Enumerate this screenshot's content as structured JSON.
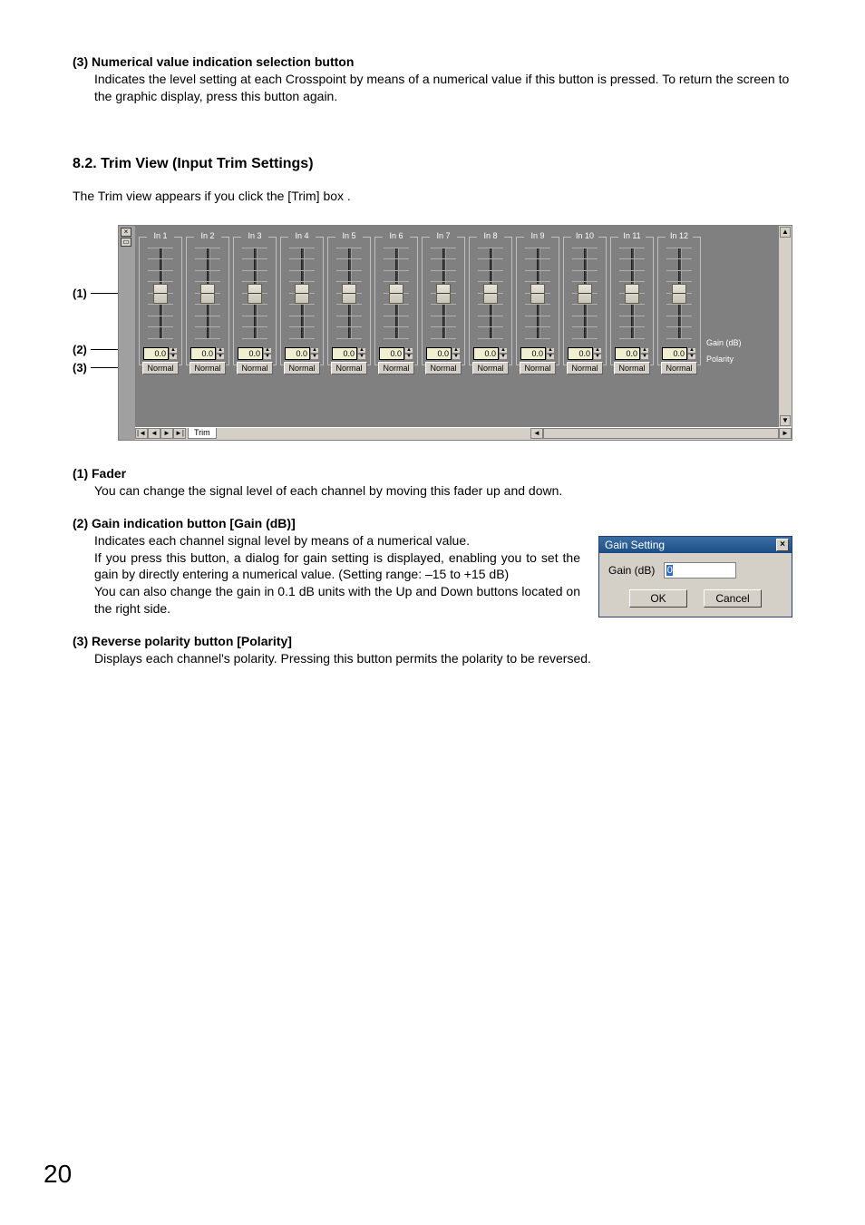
{
  "item3": {
    "heading": "(3)  Numerical value indication selection button",
    "body": "Indicates the level setting at each Crosspoint by means of a numerical value if this button is pressed. To return the screen to the graphic display, press this button again."
  },
  "section": {
    "title": "8.2. Trim View (Input Trim Settings)",
    "intro": "The Trim view appears if you click the [Trim] box ."
  },
  "callouts": [
    "(1)",
    "(2)",
    "(3)"
  ],
  "trim": {
    "channels": [
      {
        "label": "In 1",
        "gain": "0.0",
        "polarity": "Normal"
      },
      {
        "label": "In 2",
        "gain": "0.0",
        "polarity": "Normal"
      },
      {
        "label": "In 3",
        "gain": "0.0",
        "polarity": "Normal"
      },
      {
        "label": "In 4",
        "gain": "0.0",
        "polarity": "Normal"
      },
      {
        "label": "In 5",
        "gain": "0.0",
        "polarity": "Normal"
      },
      {
        "label": "In 6",
        "gain": "0.0",
        "polarity": "Normal"
      },
      {
        "label": "In 7",
        "gain": "0.0",
        "polarity": "Normal"
      },
      {
        "label": "In 8",
        "gain": "0.0",
        "polarity": "Normal"
      },
      {
        "label": "In 9",
        "gain": "0.0",
        "polarity": "Normal"
      },
      {
        "label": "In 10",
        "gain": "0.0",
        "polarity": "Normal"
      },
      {
        "label": "In 11",
        "gain": "0.0",
        "polarity": "Normal"
      },
      {
        "label": "In 12",
        "gain": "0.0",
        "polarity": "Normal"
      }
    ],
    "side_gain_label": "Gain (dB)",
    "side_polarity_label": "Polarity",
    "tab_label": "Trim",
    "nav": {
      "first": "|◄",
      "prev": "◄",
      "next": "►",
      "last": "►|"
    },
    "close_x": "×",
    "dock": "▭",
    "spin_up": "▲",
    "spin_down": "▼",
    "scroll_up": "▲",
    "scroll_down": "▼",
    "scroll_left": "◄",
    "scroll_right": "►",
    "colors": {
      "panel_bg": "#808080",
      "outer_bg": "#a0a0a0",
      "btn_face": "#d4d0c8",
      "gain_bg": "#f0f0d0",
      "text_light": "#ffffff"
    }
  },
  "fader_item": {
    "heading": "(1) Fader",
    "body": "You can change the signal level of each channel by moving this fader up and down."
  },
  "gain_item": {
    "heading": "(2) Gain indication button [Gain (dB)]",
    "body1": "Indicates each channel signal level by means of a numerical value.",
    "body2": "If you press this button, a dialog for gain setting is displayed, enabling you to set the gain by directly entering a numerical value. (Setting range: –15 to +15 dB)",
    "body3": "You can also change the gain in 0.1 dB units with the Up and Down buttons located on the right side."
  },
  "polarity_item": {
    "heading": "(3) Reverse polarity button [Polarity]",
    "body": "Displays each channel's polarity. Pressing this button permits the polarity to be reversed."
  },
  "dialog": {
    "title": "Gain Setting",
    "field_label": "Gain (dB)",
    "field_value": "0",
    "ok": "OK",
    "cancel": "Cancel",
    "close": "×",
    "colors": {
      "titlebar_start": "#3a6ea5",
      "titlebar_end": "#1a4e85",
      "face": "#d4d0c8",
      "selection": "#316ac5"
    }
  },
  "page_number": "20"
}
